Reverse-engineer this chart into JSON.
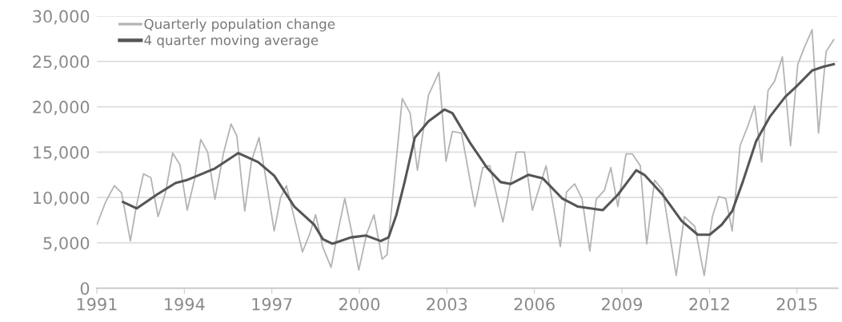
{
  "chart_data": {
    "type": "line",
    "xlim": [
      1991,
      2016.4
    ],
    "xticks": [
      1991,
      1994,
      1997,
      2000,
      2003,
      2006,
      2009,
      2012,
      2015
    ],
    "ylim": [
      0,
      30000
    ],
    "yticks": [
      {
        "value": 0,
        "label": "0"
      },
      {
        "value": 5000,
        "label": "5,000"
      },
      {
        "value": 10000,
        "label": "10,000"
      },
      {
        "value": 15000,
        "label": "15,000"
      },
      {
        "value": 20000,
        "label": "20,000"
      },
      {
        "value": 25000,
        "label": "25,000"
      },
      {
        "value": 30000,
        "label": "30,000"
      }
    ],
    "grid": "y",
    "legend": "top left",
    "series": [
      {
        "name": "Quarterly population change",
        "color": "#b4b4b4",
        "x": [
          1991.0,
          1991.3,
          1991.6,
          1991.85,
          1992.15,
          1992.35,
          1992.6,
          1992.85,
          1993.1,
          1993.35,
          1993.6,
          1993.85,
          1994.1,
          1994.35,
          1994.56,
          1994.8,
          1995.05,
          1995.35,
          1995.6,
          1995.8,
          1996.07,
          1996.3,
          1996.56,
          1996.8,
          1997.08,
          1997.3,
          1997.5,
          1997.75,
          1998.05,
          1998.3,
          1998.5,
          1998.75,
          1999.03,
          1999.25,
          1999.5,
          1999.75,
          1999.98,
          2000.25,
          2000.5,
          2000.78,
          2000.95,
          2001.47,
          2001.74,
          2001.99,
          2002.37,
          2002.73,
          2002.97,
          2003.19,
          2003.5,
          2003.96,
          2004.23,
          2004.47,
          2004.92,
          2005.38,
          2005.66,
          2005.93,
          2006.4,
          2006.89,
          2007.1,
          2007.38,
          2007.63,
          2007.9,
          2008.12,
          2008.4,
          2008.62,
          2008.86,
          2009.14,
          2009.36,
          2009.63,
          2009.85,
          2010.12,
          2010.4,
          2010.86,
          2011.14,
          2011.5,
          2011.82,
          2012.1,
          2012.32,
          2012.56,
          2012.78,
          2013.05,
          2013.33,
          2013.55,
          2013.79,
          2014.01,
          2014.23,
          2014.5,
          2014.78,
          2015.03,
          2015.25,
          2015.52,
          2015.74,
          2016.0,
          2016.26
        ],
        "values": [
          7000,
          9500,
          11300,
          10500,
          5200,
          9000,
          12600,
          12200,
          7900,
          10500,
          14900,
          13600,
          8600,
          12000,
          16400,
          15000,
          9800,
          15000,
          18100,
          16800,
          8500,
          14000,
          16600,
          12000,
          6300,
          10000,
          11300,
          8000,
          4000,
          6000,
          8100,
          4500,
          2300,
          6000,
          9900,
          6000,
          2000,
          6000,
          8100,
          3200,
          3700,
          20900,
          19300,
          13000,
          21300,
          23800,
          14000,
          17300,
          17100,
          9000,
          13300,
          13500,
          7300,
          15000,
          15000,
          8600,
          13500,
          4600,
          10600,
          11500,
          9900,
          4100,
          9800,
          10800,
          13300,
          9000,
          14800,
          14800,
          13500,
          4900,
          11900,
          10800,
          1400,
          7900,
          6800,
          1400,
          7900,
          10100,
          9900,
          6300,
          15700,
          18000,
          20100,
          13900,
          21800,
          22800,
          25500,
          15700,
          24700,
          26500,
          28500,
          17100,
          26100,
          27400
        ]
      },
      {
        "name": "4 quarter moving average",
        "color": "#555555",
        "x": [
          1991.9,
          1992.37,
          1993.05,
          1993.7,
          1994.07,
          1995.05,
          1995.85,
          1996.53,
          1997.08,
          1997.77,
          1998.45,
          1998.75,
          1999.08,
          1999.71,
          2000.23,
          2000.73,
          2001.0,
          2001.27,
          2001.55,
          2001.9,
          2002.37,
          2002.92,
          2003.19,
          2003.82,
          2004.37,
          2004.84,
          2005.19,
          2005.79,
          2006.29,
          2006.95,
          2007.49,
          2008.34,
          2008.86,
          2009.49,
          2009.77,
          2010.4,
          2011.05,
          2011.6,
          2012.01,
          2012.42,
          2012.78,
          2013.14,
          2013.6,
          2014.07,
          2014.6,
          2014.97,
          2015.52,
          2015.88,
          2016.26
        ],
        "values": [
          9500,
          8800,
          10300,
          11600,
          11900,
          13200,
          14900,
          13900,
          12400,
          9000,
          7000,
          5400,
          4900,
          5600,
          5800,
          5200,
          5600,
          8100,
          11700,
          16600,
          18400,
          19700,
          19300,
          15900,
          13300,
          11700,
          11500,
          12500,
          12100,
          9900,
          9000,
          8600,
          10300,
          13000,
          12500,
          10300,
          7400,
          5900,
          5900,
          7000,
          8500,
          11700,
          16200,
          18900,
          21100,
          22200,
          24000,
          24400,
          24700
        ]
      }
    ]
  }
}
